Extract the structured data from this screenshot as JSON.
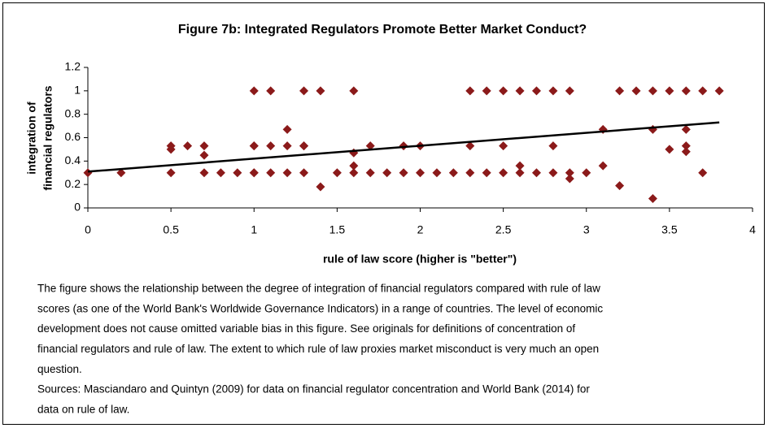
{
  "chart_data": {
    "type": "scatter",
    "title": "Figure 7b: Integrated Regulators Promote Better Market Conduct?",
    "xlabel": "rule of law score (higher is \"better\")",
    "ylabel": [
      "integration of",
      "financial regulators"
    ],
    "color": "#8b1a1a",
    "xlim": [
      0,
      4
    ],
    "xticks": [
      0,
      0.5,
      1,
      1.5,
      2,
      2.5,
      3,
      3.5,
      4
    ],
    "ylim": [
      0,
      1.2
    ],
    "yticks": [
      0,
      0.2,
      0.4,
      0.6,
      0.8,
      1,
      1.2
    ],
    "grid": false,
    "x": [
      0,
      0.2,
      0.5,
      0.5,
      0.5,
      0.6,
      0.7,
      0.7,
      0.7,
      0.8,
      0.9,
      1,
      1,
      1,
      1,
      1,
      1.1,
      1.1,
      1.1,
      1.2,
      1.2,
      1.2,
      1.3,
      1.3,
      1.3,
      1.3,
      1.4,
      1.4,
      1.5,
      1.6,
      1.6,
      1.6,
      1.6,
      1.7,
      1.7,
      1.8,
      1.9,
      1.9,
      2,
      2,
      2.1,
      2.2,
      2.3,
      2.3,
      2.3,
      2.4,
      2.4,
      2.5,
      2.5,
      2.5,
      2.6,
      2.6,
      2.6,
      2.7,
      2.7,
      2.8,
      2.8,
      2.8,
      2.9,
      2.9,
      2.9,
      3,
      3.1,
      3.1,
      3.2,
      3.2,
      3.3,
      3.4,
      3.4,
      3.4,
      3.5,
      3.5,
      3.6,
      3.6,
      3.6,
      3.6,
      3.7,
      3.7,
      3.8
    ],
    "y": [
      0.3,
      0.3,
      0.53,
      0.5,
      0.3,
      0.53,
      0.53,
      0.45,
      0.3,
      0.3,
      0.3,
      1,
      0.53,
      0.53,
      0.3,
      0.3,
      1,
      0.53,
      0.3,
      0.67,
      0.53,
      0.3,
      1,
      0.53,
      0.53,
      0.3,
      1,
      0.18,
      0.3,
      1,
      0.47,
      0.36,
      0.3,
      0.53,
      0.3,
      0.3,
      0.53,
      0.3,
      0.53,
      0.3,
      0.3,
      0.3,
      1,
      0.53,
      0.3,
      1,
      0.3,
      1,
      0.53,
      0.3,
      1,
      0.36,
      0.3,
      1,
      0.3,
      1,
      0.53,
      0.3,
      1,
      0.3,
      0.25,
      0.3,
      0.67,
      0.36,
      1,
      0.19,
      1,
      1,
      0.67,
      0.08,
      1,
      0.5,
      1,
      0.67,
      0.53,
      0.48,
      1,
      0.3,
      1
    ],
    "trendline": {
      "x": [
        0,
        3.8
      ],
      "y": [
        0.31,
        0.73
      ]
    },
    "caption": [
      "The figure shows the relationship between the degree of integration of financial regulators compared with rule of law",
      "scores (as one of the World Bank's Worldwide Governance Indicators) in a range of countries. The level of economic",
      "development does not cause omitted variable bias in this figure. See originals for definitions of concentration of",
      "financial regulators and rule of law. The extent to which rule of law proxies market misconduct is very much an open",
      "question.",
      "Sources: Masciandaro and Quintyn (2009) for data on financial regulator concentration and World Bank (2014) for",
      "data on rule of law."
    ]
  }
}
